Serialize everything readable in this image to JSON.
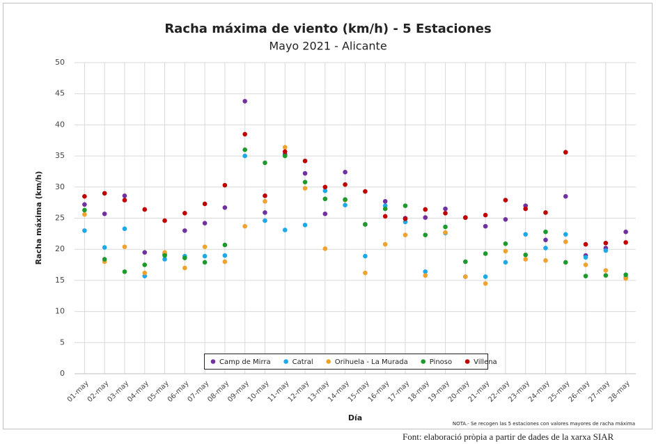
{
  "chart_data": {
    "type": "scatter",
    "title": "Racha máxima de viento (km/h) - 5 Estaciones",
    "subtitle": "Mayo 2021 - Alicante",
    "y_label": "Racha máxima (km/h)",
    "x_label": "Día",
    "note": "NOTA.- Se recogen las 5 estaciones con valores mayores de racha máxima",
    "source": "Font: elaboració pròpia a partir de dades de la xarxa SIAR",
    "categories": [
      "01-may",
      "02-may",
      "03-may",
      "04-may",
      "05-may",
      "06-may",
      "07-may",
      "08-may",
      "09-may",
      "10-may",
      "11-may",
      "12-may",
      "13-may",
      "14-may",
      "15-may",
      "16-may",
      "17-may",
      "18-may",
      "19-may",
      "20-may",
      "21-may",
      "22-may",
      "23-may",
      "24-may",
      "25-may",
      "26-may",
      "27-may",
      "28-may"
    ],
    "series": [
      {
        "name": "Camp de Mirra",
        "color": "#7030a0",
        "values": [
          27.2,
          25.7,
          28.6,
          19.5,
          19.2,
          23,
          24.2,
          26.7,
          43.8,
          25.9,
          35.3,
          32.2,
          25.7,
          32.4,
          24,
          27.7,
          25,
          25.1,
          26.5,
          25.1,
          23.7,
          24.8,
          27,
          21.5,
          28.5,
          19,
          20.2,
          22.8
        ]
      },
      {
        "name": "Catral",
        "color": "#1fa8e8",
        "values": [
          23,
          20.3,
          23.3,
          15.7,
          18.4,
          18.9,
          18.9,
          19,
          35,
          24.6,
          23.1,
          23.9,
          29.4,
          27.1,
          18.9,
          27,
          24.4,
          16.4,
          22.6,
          15.6,
          15.6,
          17.9,
          22.4,
          20.2,
          22.4,
          18.7,
          19.8,
          15.5
        ]
      },
      {
        "name": "Orihuela - La Murada",
        "color": "#f0a22e",
        "values": [
          25.6,
          18,
          20.4,
          16.2,
          19.5,
          17,
          20.4,
          18,
          23.7,
          27.7,
          36.4,
          29.8,
          20.1,
          27.9,
          16.2,
          20.8,
          22.3,
          15.8,
          22.7,
          15.6,
          14.5,
          19.7,
          18.4,
          18.2,
          21.2,
          17.5,
          16.6,
          15.3
        ]
      },
      {
        "name": "Pinoso",
        "color": "#1d9a2c",
        "values": [
          26.3,
          18.4,
          16.4,
          17.5,
          19,
          18.6,
          17.9,
          20.7,
          36,
          33.9,
          35,
          30.8,
          28.1,
          28,
          24,
          26.5,
          27,
          22.3,
          23.6,
          18,
          19.3,
          20.9,
          19.1,
          22.8,
          17.9,
          15.7,
          15.8,
          15.9
        ]
      },
      {
        "name": "Villena",
        "color": "#c00000",
        "values": [
          28.5,
          29,
          27.9,
          26.4,
          24.6,
          25.8,
          27.3,
          30.3,
          38.5,
          28.6,
          35.7,
          34.2,
          30,
          30.4,
          29.3,
          25.3,
          24.9,
          26.4,
          25.8,
          25.1,
          25.5,
          27.9,
          26.5,
          25.9,
          35.6,
          20.8,
          21,
          21.1
        ]
      }
    ],
    "ylim": [
      0,
      50
    ],
    "yticks": [
      0,
      5,
      10,
      15,
      20,
      25,
      30,
      35,
      40,
      45,
      50
    ],
    "grid": true
  }
}
